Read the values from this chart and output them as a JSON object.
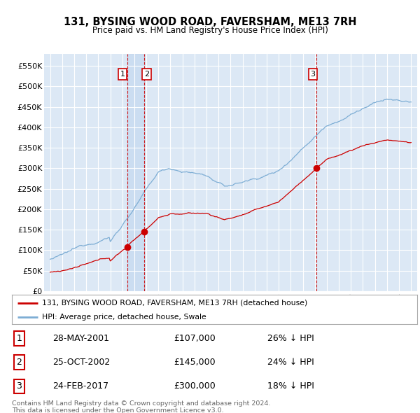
{
  "title": "131, BYSING WOOD ROAD, FAVERSHAM, ME13 7RH",
  "subtitle": "Price paid vs. HM Land Registry's House Price Index (HPI)",
  "legend_line1": "131, BYSING WOOD ROAD, FAVERSHAM, ME13 7RH (detached house)",
  "legend_line2": "HPI: Average price, detached house, Swale",
  "sale_color": "#cc0000",
  "hpi_color": "#7dadd4",
  "vline_color": "#cc0000",
  "background_color": "#ffffff",
  "plot_bg_color": "#dce8f5",
  "grid_color": "#ffffff",
  "transactions": [
    {
      "num": 1,
      "date": "28-MAY-2001",
      "price": 107000,
      "pct": "26% ↓ HPI",
      "x": 2001.41
    },
    {
      "num": 2,
      "date": "25-OCT-2002",
      "price": 145000,
      "pct": "24% ↓ HPI",
      "x": 2002.82
    },
    {
      "num": 3,
      "date": "24-FEB-2017",
      "price": 300000,
      "pct": "18% ↓ HPI",
      "x": 2017.15
    }
  ],
  "footer1": "Contains HM Land Registry data © Crown copyright and database right 2024.",
  "footer2": "This data is licensed under the Open Government Licence v3.0.",
  "ylim": [
    0,
    580000
  ],
  "yticks": [
    0,
    50000,
    100000,
    150000,
    200000,
    250000,
    300000,
    350000,
    400000,
    450000,
    500000,
    550000
  ],
  "xlim": [
    1994.5,
    2025.5
  ],
  "shade_x1": 2001.41,
  "shade_x2": 2002.82
}
